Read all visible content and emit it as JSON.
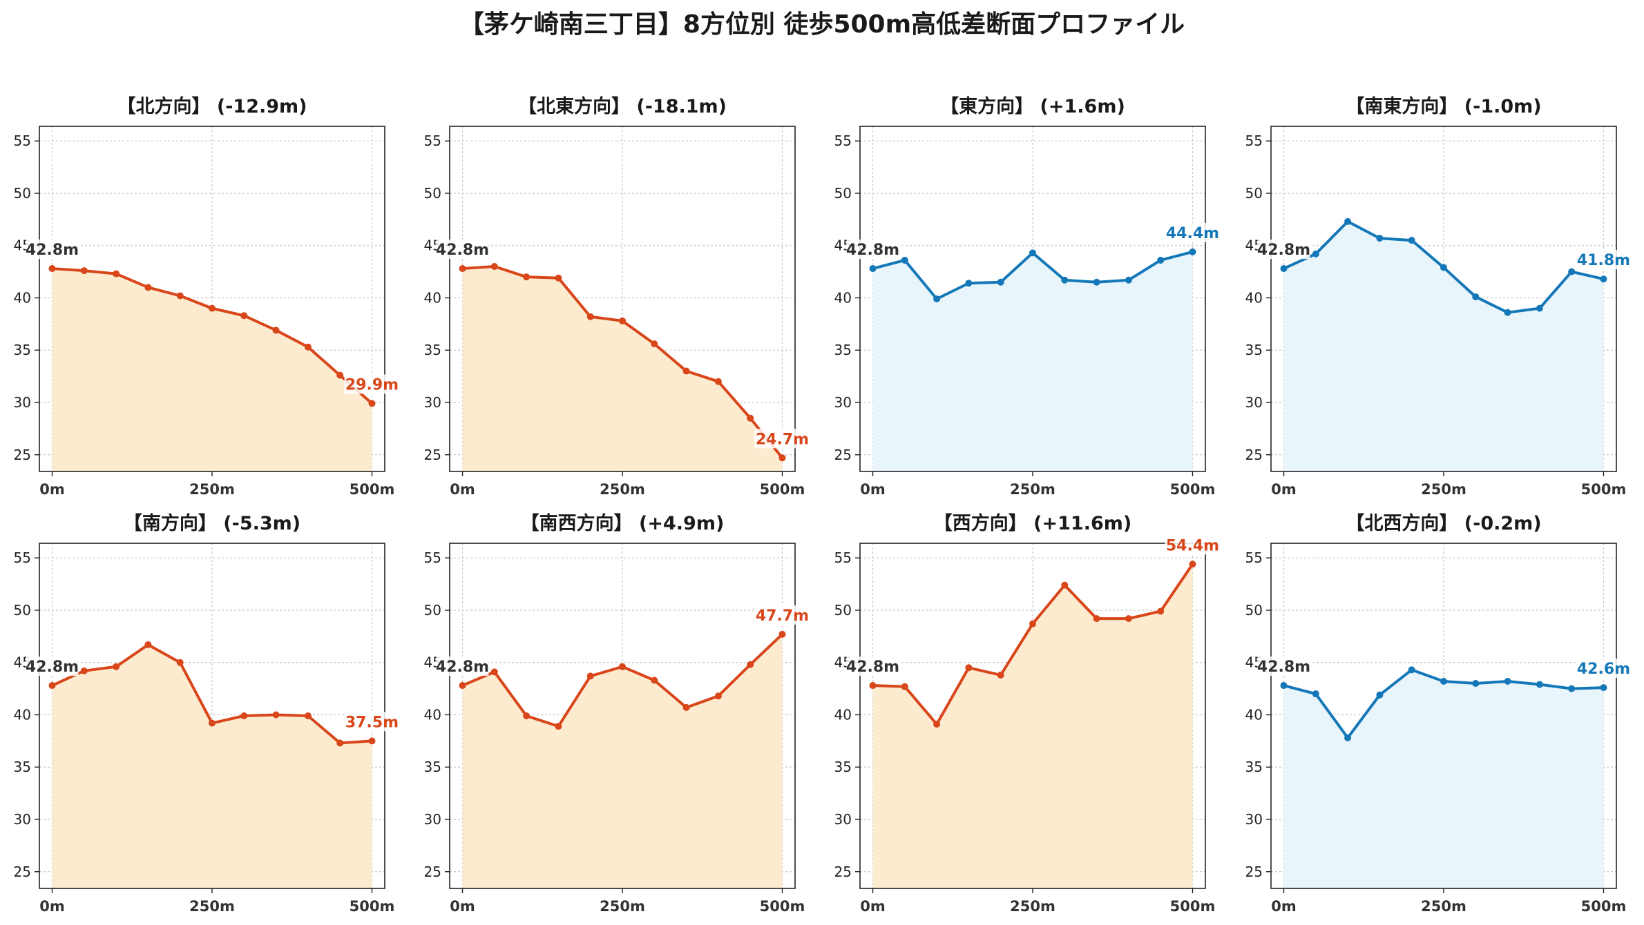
{
  "title": "【茅ケ崎南三丁目】8方位別 徒歩500m高低差断面プロファイル",
  "colors": {
    "down_line": "#d8461a",
    "down_fill": "#fdebd0",
    "up_line": "#1478b8",
    "up_fill": "#e8f5fb",
    "start_label": "#333333"
  },
  "chart_data": [
    {
      "type": "area",
      "title": "【北方向】 (-12.9m)",
      "x": [
        0,
        50,
        100,
        150,
        200,
        250,
        300,
        350,
        400,
        450,
        500
      ],
      "x_ticks": [
        "0m",
        "250m",
        "500m"
      ],
      "y": [
        42.8,
        42.6,
        42.3,
        41.0,
        40.2,
        39.0,
        38.3,
        36.9,
        35.3,
        32.6,
        29.9
      ],
      "ylim": [
        23.4,
        56.4
      ],
      "y_ticks": [
        25,
        30,
        35,
        40,
        45,
        50,
        55
      ],
      "start_label": "42.8m",
      "end_label": "29.9m",
      "style": "down",
      "grid": true
    },
    {
      "type": "area",
      "title": "【北東方向】 (-18.1m)",
      "x": [
        0,
        50,
        100,
        150,
        200,
        250,
        300,
        350,
        400,
        450,
        500
      ],
      "x_ticks": [
        "0m",
        "250m",
        "500m"
      ],
      "y": [
        42.8,
        43.0,
        42.0,
        41.9,
        38.2,
        37.8,
        35.6,
        33.0,
        32.0,
        28.5,
        24.7
      ],
      "ylim": [
        23.4,
        56.4
      ],
      "y_ticks": [
        25,
        30,
        35,
        40,
        45,
        50,
        55
      ],
      "start_label": "42.8m",
      "end_label": "24.7m",
      "style": "down",
      "grid": true
    },
    {
      "type": "area",
      "title": "【東方向】 (+1.6m)",
      "x": [
        0,
        50,
        100,
        150,
        200,
        250,
        300,
        350,
        400,
        450,
        500
      ],
      "x_ticks": [
        "0m",
        "250m",
        "500m"
      ],
      "y": [
        42.8,
        43.6,
        39.9,
        41.4,
        41.5,
        44.3,
        41.7,
        41.5,
        41.7,
        43.6,
        44.4
      ],
      "ylim": [
        23.4,
        56.4
      ],
      "y_ticks": [
        25,
        30,
        35,
        40,
        45,
        50,
        55
      ],
      "start_label": "42.8m",
      "end_label": "44.4m",
      "style": "up",
      "grid": true
    },
    {
      "type": "area",
      "title": "【南東方向】 (-1.0m)",
      "x": [
        0,
        50,
        100,
        150,
        200,
        250,
        300,
        350,
        400,
        450,
        500
      ],
      "x_ticks": [
        "0m",
        "250m",
        "500m"
      ],
      "y": [
        42.8,
        44.2,
        47.3,
        45.7,
        45.5,
        42.9,
        40.1,
        38.6,
        39.0,
        42.5,
        41.8
      ],
      "ylim": [
        23.4,
        56.4
      ],
      "y_ticks": [
        25,
        30,
        35,
        40,
        45,
        50,
        55
      ],
      "start_label": "42.8m",
      "end_label": "41.8m",
      "style": "up",
      "grid": true
    },
    {
      "type": "area",
      "title": "【南方向】 (-5.3m)",
      "x": [
        0,
        50,
        100,
        150,
        200,
        250,
        300,
        350,
        400,
        450,
        500
      ],
      "x_ticks": [
        "0m",
        "250m",
        "500m"
      ],
      "y": [
        42.8,
        44.2,
        44.6,
        46.7,
        45.0,
        39.2,
        39.9,
        40.0,
        39.9,
        37.3,
        37.5
      ],
      "ylim": [
        23.4,
        56.4
      ],
      "y_ticks": [
        25,
        30,
        35,
        40,
        45,
        50,
        55
      ],
      "start_label": "42.8m",
      "end_label": "37.5m",
      "style": "down",
      "grid": true
    },
    {
      "type": "area",
      "title": "【南西方向】 (+4.9m)",
      "x": [
        0,
        50,
        100,
        150,
        200,
        250,
        300,
        350,
        400,
        450,
        500
      ],
      "x_ticks": [
        "0m",
        "250m",
        "500m"
      ],
      "y": [
        42.8,
        44.1,
        39.9,
        38.9,
        43.7,
        44.6,
        43.3,
        40.7,
        41.8,
        44.8,
        47.7
      ],
      "ylim": [
        23.4,
        56.4
      ],
      "y_ticks": [
        25,
        30,
        35,
        40,
        45,
        50,
        55
      ],
      "start_label": "42.8m",
      "end_label": "47.7m",
      "style": "down",
      "grid": true
    },
    {
      "type": "area",
      "title": "【西方向】 (+11.6m)",
      "x": [
        0,
        50,
        100,
        150,
        200,
        250,
        300,
        350,
        400,
        450,
        500
      ],
      "x_ticks": [
        "0m",
        "250m",
        "500m"
      ],
      "y": [
        42.8,
        42.7,
        39.1,
        44.5,
        43.8,
        48.7,
        52.4,
        49.2,
        49.2,
        49.9,
        54.4
      ],
      "ylim": [
        23.4,
        56.4
      ],
      "y_ticks": [
        25,
        30,
        35,
        40,
        45,
        50,
        55
      ],
      "start_label": "42.8m",
      "end_label": "54.4m",
      "style": "down",
      "grid": true
    },
    {
      "type": "area",
      "title": "【北西方向】 (-0.2m)",
      "x": [
        0,
        50,
        100,
        150,
        200,
        250,
        300,
        350,
        400,
        450,
        500
      ],
      "x_ticks": [
        "0m",
        "250m",
        "500m"
      ],
      "y": [
        42.8,
        42.0,
        37.8,
        41.9,
        44.3,
        43.2,
        43.0,
        43.2,
        42.9,
        42.5,
        42.6
      ],
      "ylim": [
        23.4,
        56.4
      ],
      "y_ticks": [
        25,
        30,
        35,
        40,
        45,
        50,
        55
      ],
      "start_label": "42.8m",
      "end_label": "42.6m",
      "style": "up",
      "grid": true
    }
  ]
}
